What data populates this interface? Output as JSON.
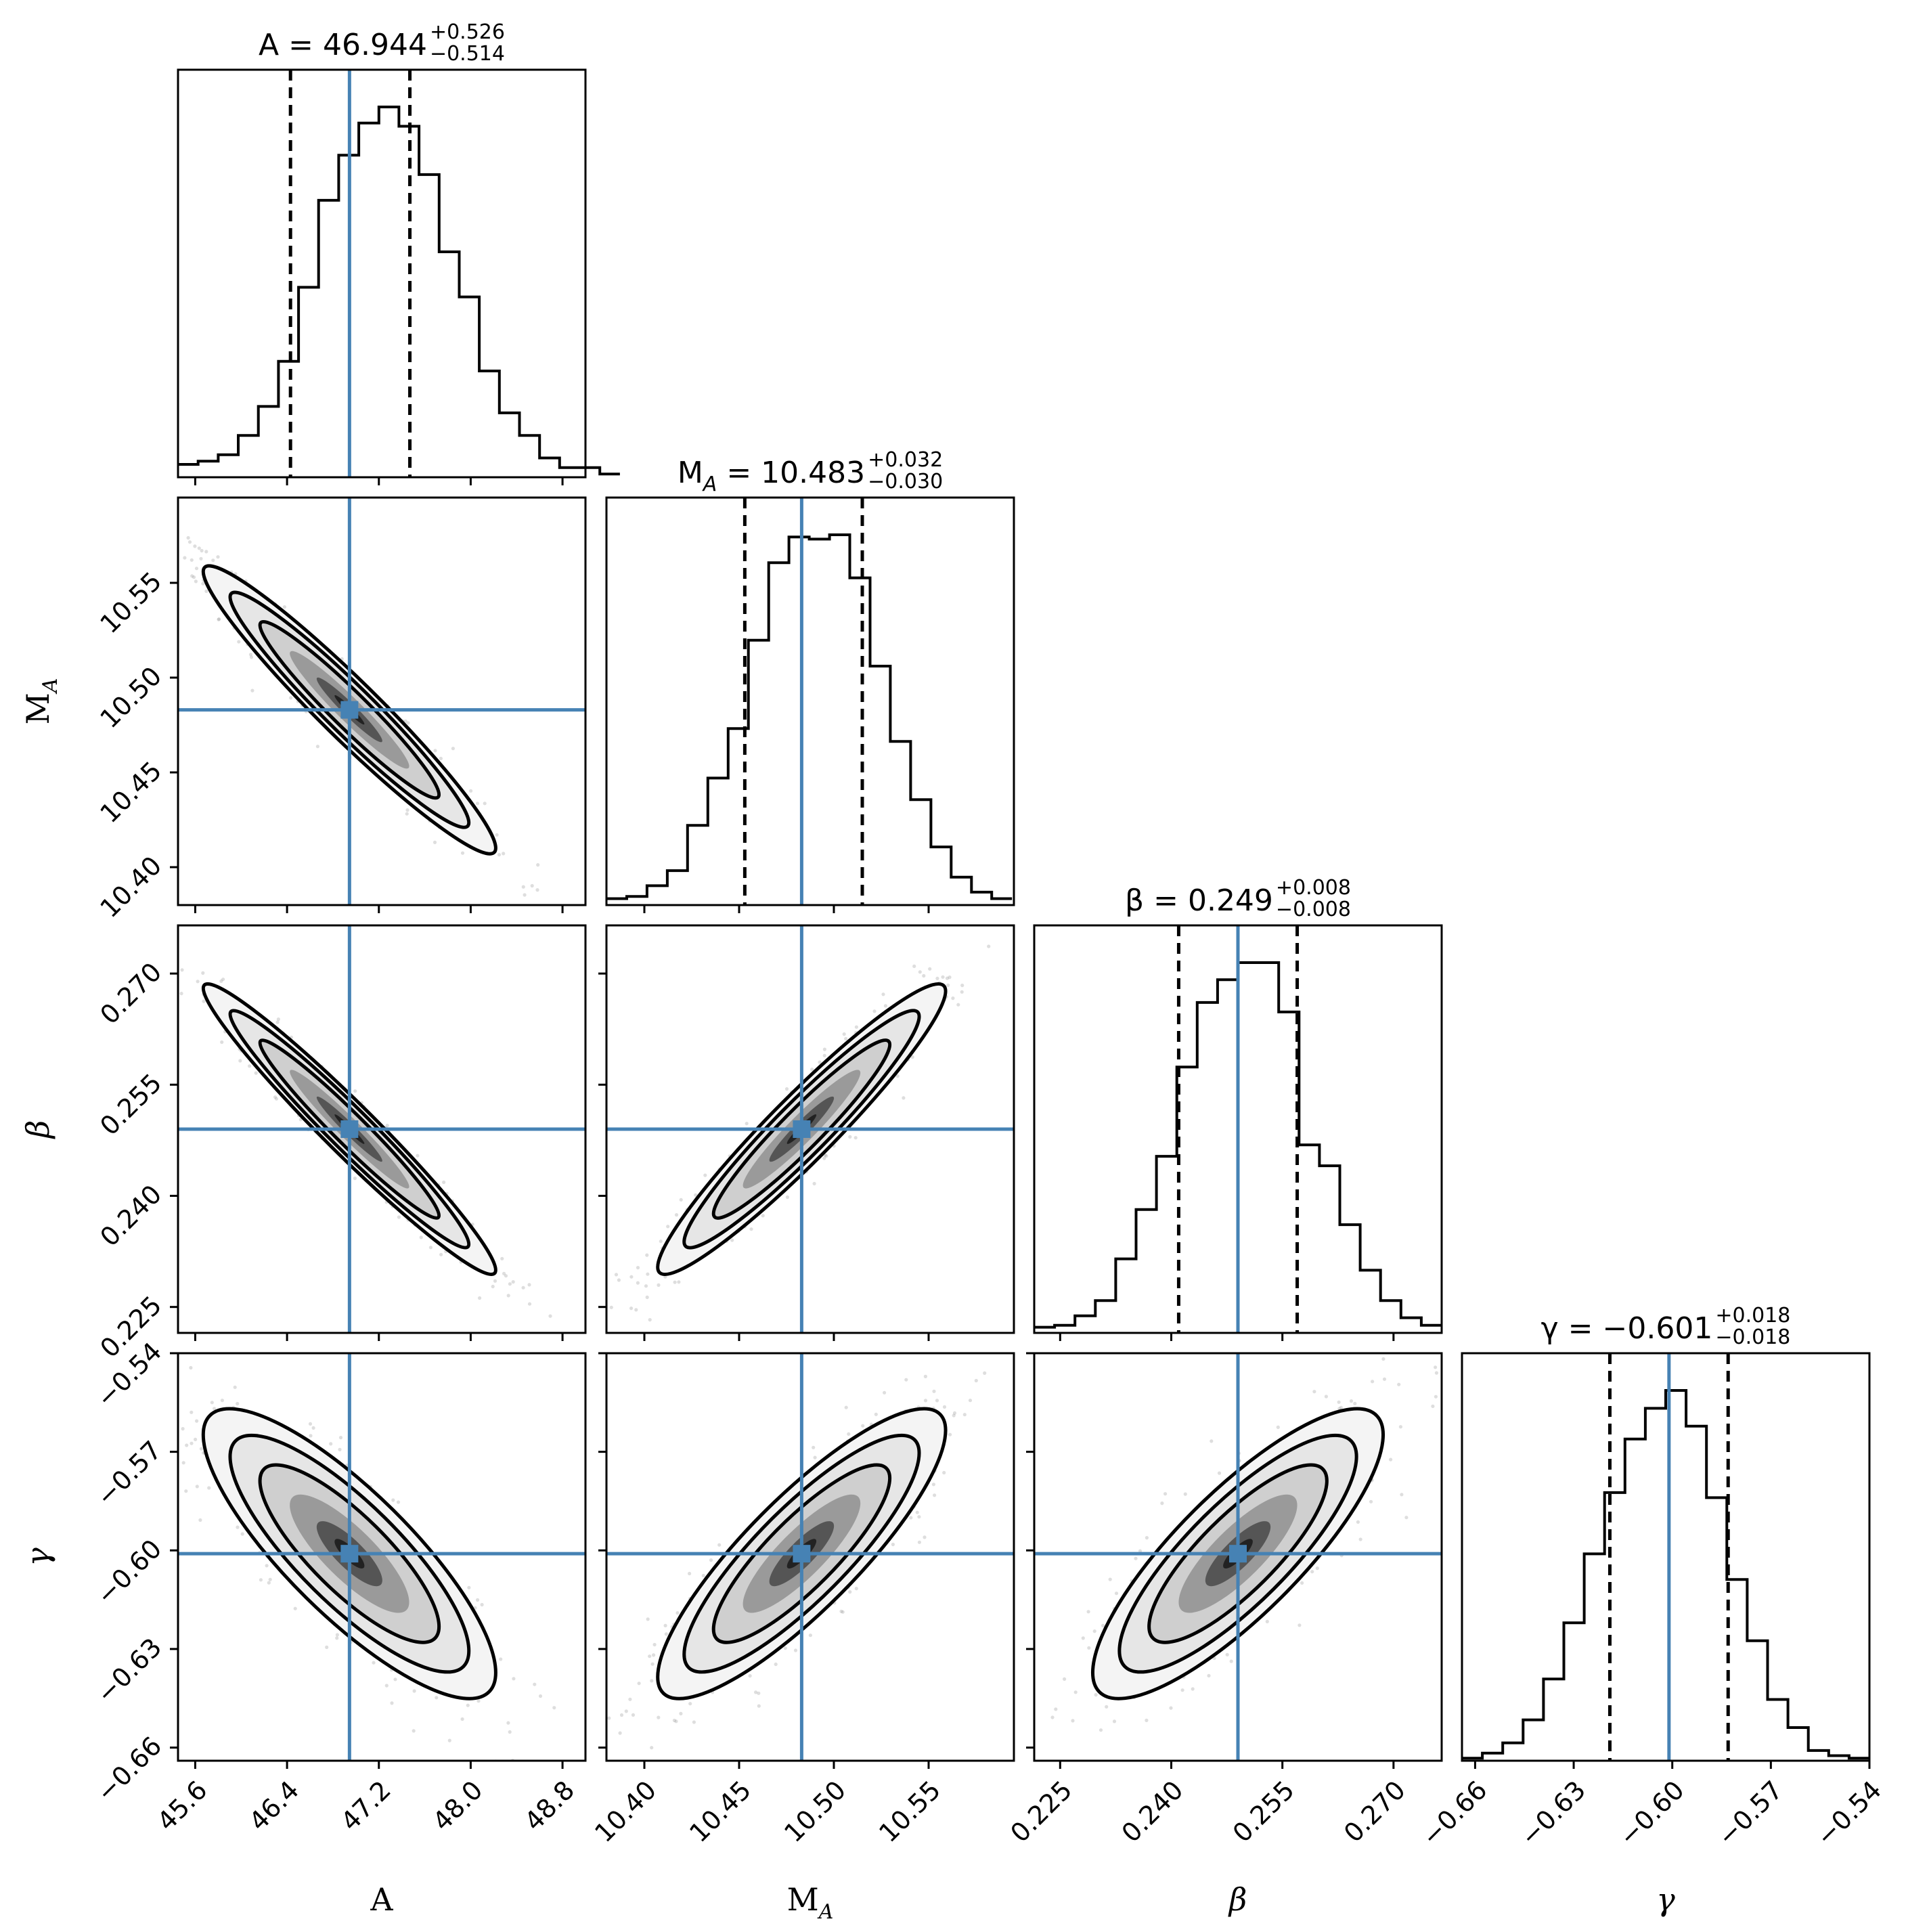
{
  "chart_data": {
    "type": "corner",
    "parameters": [
      {
        "symbol": "A",
        "sub": "",
        "italic": false,
        "median": 46.944,
        "err_plus": 0.526,
        "err_minus": 0.514,
        "title": {
          "prefix": "A = ",
          "value": "46.944",
          "plus": "+0.526",
          "minus": "−0.514"
        },
        "range": [
          45.45,
          49.0
        ],
        "ticks": [
          45.6,
          46.4,
          47.2,
          48.0,
          48.8
        ],
        "tick_labels": [
          "45.6",
          "46.4",
          "47.2",
          "48.0",
          "48.8"
        ]
      },
      {
        "symbol": "M",
        "sub": "A",
        "italic": false,
        "median": 10.483,
        "err_plus": 0.032,
        "err_minus": 0.03,
        "title": {
          "prefix": "M",
          "value": "10.483",
          "plus": "+0.032",
          "minus": "−0.030"
        },
        "range": [
          10.38,
          10.595
        ],
        "ticks": [
          10.4,
          10.45,
          10.5,
          10.55
        ],
        "tick_labels": [
          "10.40",
          "10.45",
          "10.50",
          "10.55"
        ]
      },
      {
        "symbol": "β",
        "sub": "",
        "italic": true,
        "median": 0.249,
        "err_plus": 0.008,
        "err_minus": 0.008,
        "title": {
          "prefix": "β = ",
          "value": "0.249",
          "plus": "+0.008",
          "minus": "−0.008"
        },
        "range": [
          0.2215,
          0.2765
        ],
        "ticks": [
          0.225,
          0.24,
          0.255,
          0.27
        ],
        "tick_labels": [
          "0.225",
          "0.240",
          "0.255",
          "0.270"
        ],
        "y_tick_labels": [
          "0.225",
          "0.240",
          "0.255",
          "0.270"
        ]
      },
      {
        "symbol": "γ",
        "sub": "",
        "italic": true,
        "median": -0.601,
        "err_plus": 0.018,
        "err_minus": 0.018,
        "title": {
          "prefix": "γ = ",
          "value": "−0.601",
          "plus": "+0.018",
          "minus": "−0.018"
        },
        "range": [
          -0.664,
          -0.54
        ],
        "ticks": [
          -0.66,
          -0.63,
          -0.6,
          -0.57,
          -0.54
        ],
        "tick_labels": [
          "−0.66",
          "−0.63",
          "−0.60",
          "−0.57",
          "−0.54"
        ]
      }
    ],
    "histograms": [
      {
        "param": "A",
        "edges_from": 45.45,
        "bin_width": 0.175,
        "counts": [
          4,
          5,
          7,
          13,
          22,
          36,
          59,
          86,
          100,
          110,
          115,
          109,
          94,
          70,
          56,
          33,
          20,
          13,
          6,
          3,
          3,
          1
        ]
      },
      {
        "param": "M_A",
        "edges_from": 10.38,
        "bin_width": 0.0107,
        "counts": [
          3,
          4,
          9,
          16,
          37,
          59,
          82,
          123,
          159,
          171,
          170,
          172,
          152,
          111,
          76,
          49,
          27,
          13,
          6,
          3
        ]
      },
      {
        "param": "β",
        "edges_from": 0.2215,
        "bin_width": 0.00275,
        "counts": [
          3,
          4,
          9,
          17,
          39,
          65,
          93,
          140,
          174,
          186,
          195,
          195,
          169,
          99,
          88,
          57,
          33,
          17,
          8,
          4
        ]
      },
      {
        "param": "γ",
        "edges_from": -0.664,
        "bin_width": 0.0062,
        "counts": [
          1,
          3,
          7,
          16,
          32,
          54,
          81,
          105,
          126,
          138,
          145,
          131,
          103,
          71,
          47,
          24,
          13,
          4,
          2,
          1
        ]
      }
    ],
    "correlations": {
      "A|M_A": -0.96,
      "A|β": -0.97,
      "M_A|β": 0.95,
      "A|γ": -0.82,
      "M_A|γ": 0.85,
      "β|γ": 0.82
    },
    "truth_color": "#4682b4",
    "line_color": "#000000",
    "scatter_color": "#888888",
    "quantile_style": "dashed",
    "axis_labels": [
      "A",
      "M_A",
      "β",
      "γ"
    ]
  }
}
